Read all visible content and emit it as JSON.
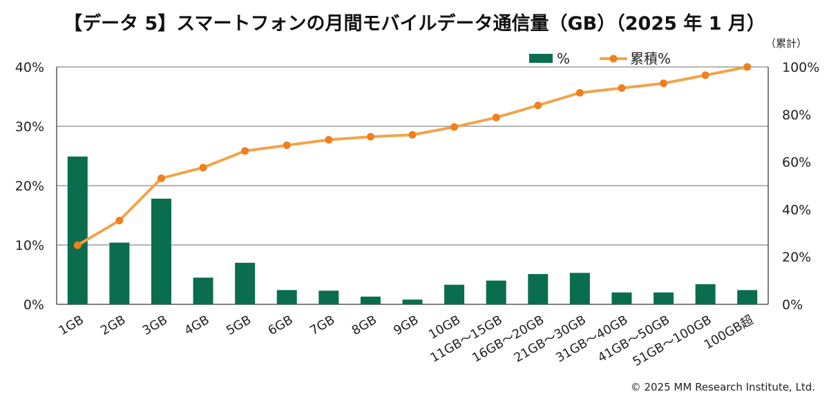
{
  "title": "【データ 5】スマートフォンの月間モバイルデータ通信量（GB）（2025 年 1 月）",
  "cumulative_note": "（累計）",
  "copyright": "© 2025 MM Research Institute, Ltd.",
  "colors": {
    "bar": "#0a6e4e",
    "line": "#f2a34a",
    "marker": "#f07f1e",
    "grid": "#888888",
    "axis": "#555555"
  },
  "chart_data": {
    "type": "bar",
    "categories": [
      "1GB",
      "2GB",
      "3GB",
      "4GB",
      "5GB",
      "6GB",
      "7GB",
      "8GB",
      "9GB",
      "10GB",
      "11GB～15GB",
      "16GB～20GB",
      "21GB～30GB",
      "31GB～40GB",
      "41GB～50GB",
      "51GB～100GB",
      "100GB超"
    ],
    "series": [
      {
        "name": "%",
        "type": "bar",
        "axis": "left",
        "values": [
          24.9,
          10.4,
          17.8,
          4.5,
          7.0,
          2.4,
          2.3,
          1.3,
          0.8,
          3.3,
          4.0,
          5.1,
          5.3,
          2.0,
          2.0,
          3.4,
          2.4
        ]
      },
      {
        "name": "累積%",
        "type": "line",
        "axis": "right",
        "values": [
          24.9,
          35.3,
          53.1,
          57.6,
          64.6,
          67.0,
          69.3,
          70.6,
          71.4,
          74.7,
          78.7,
          83.8,
          89.1,
          91.1,
          93.1,
          96.5,
          100.0
        ]
      }
    ],
    "y_left": {
      "min": 0,
      "max": 40,
      "ticks": [
        "0%",
        "10%",
        "20%",
        "30%",
        "40%"
      ]
    },
    "y_right": {
      "min": 0,
      "max": 100,
      "ticks": [
        "0%",
        "20%",
        "40%",
        "60%",
        "80%",
        "100%"
      ]
    },
    "grid": true,
    "legend": "top-right"
  }
}
